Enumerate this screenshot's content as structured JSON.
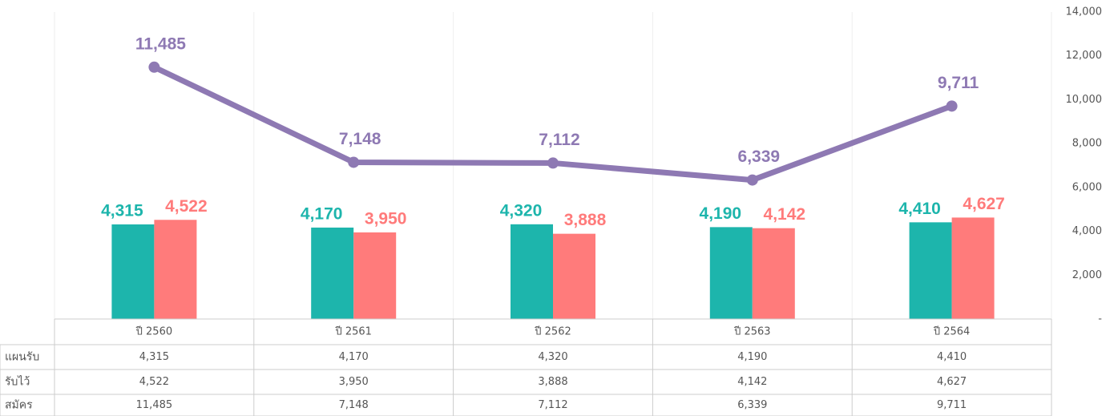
{
  "chart_data": {
    "type": "bar",
    "categories": [
      "ปี 2560",
      "ปี 2561",
      "ปี 2562",
      "ปี 2563",
      "ปี 2564"
    ],
    "series": [
      {
        "name": "แผนรับ",
        "type": "bar",
        "color": "#1db5ac",
        "values": [
          4315,
          4170,
          4320,
          4190,
          4410
        ],
        "value_labels": [
          "4,315",
          "4,170",
          "4,320",
          "4,190",
          "4,410"
        ]
      },
      {
        "name": "รับไว้",
        "type": "bar",
        "color": "#ff7b7b",
        "values": [
          4522,
          3950,
          3888,
          4142,
          4627
        ],
        "value_labels": [
          "4,522",
          "3,950",
          "3,888",
          "4,142",
          "4,627"
        ]
      },
      {
        "name": "สมัคร",
        "type": "line",
        "color": "#8e79b3",
        "values": [
          11485,
          7148,
          7112,
          6339,
          9711
        ],
        "value_labels": [
          "11,485",
          "7,148",
          "7,112",
          "6,339",
          "9,711"
        ]
      }
    ],
    "ylim": [
      0,
      14000
    ],
    "yticks": [
      {
        "value": 0,
        "label": "-"
      },
      {
        "value": 2000,
        "label": "2,000"
      },
      {
        "value": 4000,
        "label": "4,000"
      },
      {
        "value": 6000,
        "label": "6,000"
      },
      {
        "value": 8000,
        "label": "8,000"
      },
      {
        "value": 10000,
        "label": "10,000"
      },
      {
        "value": 12000,
        "label": "12,000"
      },
      {
        "value": 14000,
        "label": "14,000"
      }
    ]
  }
}
